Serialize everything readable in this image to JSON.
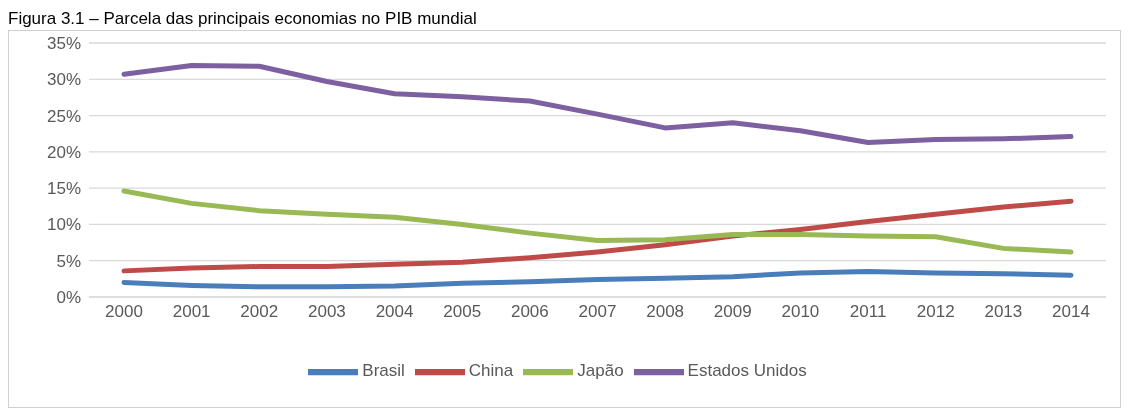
{
  "chart_data": {
    "type": "line",
    "title": "Figura 3.1 – Parcela das principais economias no PIB mundial",
    "categories": [
      "2000",
      "2001",
      "2002",
      "2003",
      "2004",
      "2005",
      "2006",
      "2007",
      "2008",
      "2009",
      "2010",
      "2011",
      "2012",
      "2013",
      "2014"
    ],
    "series": [
      {
        "name": "Brasil",
        "color": "#4a7ebb",
        "values": [
          2.0,
          1.6,
          1.4,
          1.4,
          1.5,
          1.9,
          2.1,
          2.4,
          2.6,
          2.8,
          3.3,
          3.5,
          3.3,
          3.2,
          3.0
        ]
      },
      {
        "name": "China",
        "color": "#be4b48",
        "values": [
          3.6,
          4.0,
          4.2,
          4.2,
          4.5,
          4.8,
          5.4,
          6.2,
          7.2,
          8.4,
          9.3,
          10.4,
          11.4,
          12.4,
          13.2
        ]
      },
      {
        "name": "Japão",
        "color": "#98b954",
        "values": [
          14.6,
          12.9,
          11.9,
          11.4,
          11.0,
          10.0,
          8.8,
          7.8,
          7.9,
          8.6,
          8.6,
          8.4,
          8.3,
          6.7,
          6.2
        ]
      },
      {
        "name": "Estados Unidos",
        "color": "#7d60a0",
        "values": [
          30.7,
          31.9,
          31.8,
          29.7,
          28.0,
          27.6,
          27.0,
          25.2,
          23.3,
          24.0,
          22.9,
          21.3,
          21.7,
          21.8,
          22.1
        ]
      }
    ],
    "ylim": [
      0,
      35
    ],
    "yticks": [
      {
        "value": 0,
        "label": "0%"
      },
      {
        "value": 5,
        "label": "5%"
      },
      {
        "value": 10,
        "label": "10%"
      },
      {
        "value": 15,
        "label": "15%"
      },
      {
        "value": 20,
        "label": "20%"
      },
      {
        "value": 25,
        "label": "25%"
      },
      {
        "value": 30,
        "label": "30%"
      },
      {
        "value": 35,
        "label": "35%"
      }
    ],
    "grid": "y",
    "legend": "bottom",
    "marker": "none",
    "line_style": "solid"
  }
}
